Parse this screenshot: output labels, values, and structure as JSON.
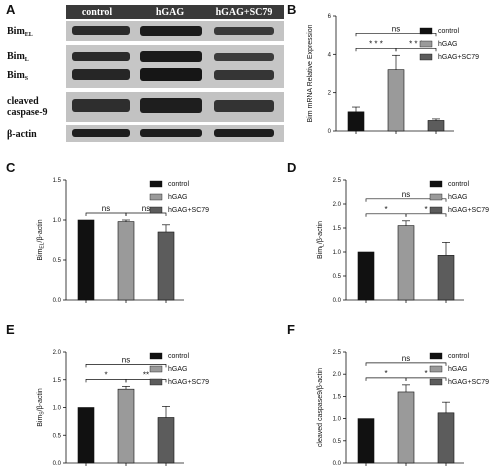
{
  "panel_letters": [
    "A",
    "B",
    "C",
    "D",
    "E",
    "F"
  ],
  "blot": {
    "columns": [
      "control",
      "hGAG",
      "hGAG+SC79"
    ],
    "rows": [
      {
        "label": "Bim",
        "sub": "EL"
      },
      {
        "label": "Bim",
        "sub": "L"
      },
      {
        "label": "Bim",
        "sub": "S"
      },
      {
        "label": "cleaved",
        "sub": ""
      },
      {
        "label": "caspase-9",
        "sub": ""
      },
      {
        "label": "β-actin",
        "sub": ""
      }
    ]
  },
  "legend": [
    "control",
    "hGAG",
    "hGAG+SC79"
  ],
  "colors": {
    "control": "#111111",
    "hGAG": "#9a9a9a",
    "hGAG+SC79": "#5c5c5c"
  },
  "chart_data": [
    {
      "type": "bar",
      "panel": "B",
      "categories": [
        "control",
        "hGAG",
        "hGAG+SC79"
      ],
      "values": [
        1.0,
        3.2,
        0.55
      ],
      "errors": [
        0.25,
        0.75,
        0.08
      ],
      "ylabel": "Bim mRNA Relative Expression",
      "ylabel_sub": "",
      "ylim": [
        0,
        6
      ],
      "yticks": [
        "0",
        "2",
        "4",
        "6"
      ],
      "comparisons": [
        {
          "label": "* * *",
          "from": 0,
          "to": 1,
          "level": 1
        },
        {
          "label": "* * *",
          "from": 1,
          "to": 2,
          "level": 1
        },
        {
          "label": "ns",
          "from": 0,
          "to": 2,
          "level": 2
        }
      ]
    },
    {
      "type": "bar",
      "panel": "C",
      "categories": [
        "control",
        "hGAG",
        "hGAG+SC79"
      ],
      "values": [
        1.0,
        0.98,
        0.85
      ],
      "errors": [
        0.0,
        0.02,
        0.09
      ],
      "ylabel": "Bim",
      "ylabel_sub": "EL",
      "ylabel_suffix": "/β-actin",
      "ylim": [
        0,
        1.5
      ],
      "yticks": [
        "0.0",
        "0.5",
        "1.0",
        "1.5"
      ],
      "comparisons": [
        {
          "label": "ns",
          "from": 0,
          "to": 1,
          "level": 1
        },
        {
          "label": "ns",
          "from": 1,
          "to": 2,
          "level": 1
        }
      ]
    },
    {
      "type": "bar",
      "panel": "D",
      "categories": [
        "control",
        "hGAG",
        "hGAG+SC79"
      ],
      "values": [
        1.0,
        1.55,
        0.93
      ],
      "errors": [
        0.0,
        0.1,
        0.27
      ],
      "ylabel": "Bim",
      "ylabel_sub": "L",
      "ylabel_suffix": "/β-actin",
      "ylim": [
        0,
        2.5
      ],
      "yticks": [
        "0.0",
        "0.5",
        "1.0",
        "1.5",
        "2.0",
        "2.5"
      ],
      "comparisons": [
        {
          "label": "*",
          "from": 0,
          "to": 1,
          "level": 1
        },
        {
          "label": "*",
          "from": 1,
          "to": 2,
          "level": 1
        },
        {
          "label": "ns",
          "from": 0,
          "to": 2,
          "level": 2
        }
      ]
    },
    {
      "type": "bar",
      "panel": "E",
      "categories": [
        "control",
        "hGAG",
        "hGAG+SC79"
      ],
      "values": [
        1.0,
        1.33,
        0.82
      ],
      "errors": [
        0.0,
        0.05,
        0.2
      ],
      "ylabel": "Bim",
      "ylabel_sub": "S",
      "ylabel_suffix": "/β-actin",
      "ylim": [
        0,
        2.0
      ],
      "yticks": [
        "0.0",
        "0.5",
        "1.0",
        "1.5",
        "2.0"
      ],
      "comparisons": [
        {
          "label": "*",
          "from": 0,
          "to": 1,
          "level": 1
        },
        {
          "label": "**",
          "from": 1,
          "to": 2,
          "level": 1
        },
        {
          "label": "ns",
          "from": 0,
          "to": 2,
          "level": 2
        }
      ]
    },
    {
      "type": "bar",
      "panel": "F",
      "categories": [
        "control",
        "hGAG",
        "hGAG+SC79"
      ],
      "values": [
        1.0,
        1.6,
        1.13
      ],
      "errors": [
        0.0,
        0.16,
        0.24
      ],
      "ylabel": "cleaved caspase9/β-actin",
      "ylabel_sub": "",
      "ylim": [
        0,
        2.5
      ],
      "yticks": [
        "0.0",
        "0.5",
        "1.0",
        "1.5",
        "2.0",
        "2.5"
      ],
      "comparisons": [
        {
          "label": "*",
          "from": 0,
          "to": 1,
          "level": 1
        },
        {
          "label": "*",
          "from": 1,
          "to": 2,
          "level": 1
        },
        {
          "label": "ns",
          "from": 0,
          "to": 2,
          "level": 2
        }
      ]
    }
  ]
}
